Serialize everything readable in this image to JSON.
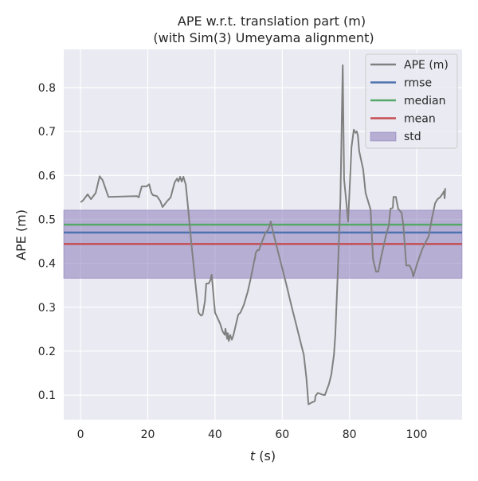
{
  "chart_data": {
    "type": "line",
    "title": [
      "APE w.r.t. translation part (m)",
      "(with Sim(3) Umeyama alignment)"
    ],
    "xlabel_italic": "t",
    "xlabel_rest": " (s)",
    "ylabel": "APE (m)",
    "xlim": [
      -5,
      113.5
    ],
    "ylim": [
      0.044,
      0.887
    ],
    "xticks": [
      0,
      20,
      40,
      60,
      80,
      100
    ],
    "yticks": [
      0.1,
      0.2,
      0.3,
      0.4,
      0.5,
      0.6,
      0.7,
      0.8
    ],
    "grid": true,
    "legend_position": "top-right",
    "legend": [
      "APE (m)",
      "rmse",
      "median",
      "mean",
      "std"
    ],
    "colors": {
      "ape": "#808080",
      "rmse": "#4c72b0",
      "median": "#55a868",
      "mean": "#c44e52",
      "std": "#8172b3"
    },
    "stats": {
      "rmse": 0.47,
      "median": 0.488,
      "mean": 0.444,
      "std_band": [
        0.366,
        0.521
      ]
    },
    "series": [
      {
        "name": "APE (m)",
        "x": [
          0,
          0.7,
          2.1,
          3.1,
          4.5,
          5.7,
          6.6,
          8.3,
          16.8,
          17.3,
          18.2,
          19.7,
          20.4,
          21.1,
          21.6,
          22.7,
          23.7,
          24.4,
          25.8,
          26.8,
          28,
          28.7,
          29.1,
          29.6,
          30.1,
          30.6,
          31.3,
          32,
          33,
          34.4,
          35.1,
          35.8,
          36.3,
          37,
          37.4,
          38.1,
          38.6,
          39,
          39.3,
          40,
          41.5,
          42.2,
          42.9,
          43.1,
          43.6,
          43.8,
          44.1,
          44.5,
          45,
          45.5,
          46.9,
          47.6,
          48.6,
          49.8,
          50.7,
          51.7,
          51.9,
          52.1,
          52.6,
          53.1,
          53.8,
          54.3,
          55,
          55.7,
          56.2,
          56.6,
          57.1,
          57.8,
          59,
          60.2,
          61.4,
          62.8,
          64.2,
          65.6,
          66.4,
          67.2,
          67.8,
          68.7,
          69.7,
          69.9,
          70.6,
          72,
          72.7,
          73.9,
          74.6,
          75.4,
          75.8,
          76.5,
          77.3,
          78,
          78.4,
          79.6,
          80.6,
          81.3,
          81.8,
          82.2,
          82.5,
          82.9,
          84.1,
          84.8,
          85.5,
          86.3,
          87,
          87.9,
          88.6,
          89.3,
          90.8,
          91.7,
          92.2,
          92.9,
          93.1,
          93.8,
          94.5,
          95.5,
          96,
          96.9,
          97.9,
          98.6,
          99,
          100.2,
          101.7,
          103.6,
          104.5,
          105.5,
          106.2,
          106.9,
          107.8,
          108.1,
          108.3,
          108.5
        ],
        "y": [
          0.539,
          0.543,
          0.557,
          0.546,
          0.56,
          0.598,
          0.589,
          0.551,
          0.553,
          0.55,
          0.575,
          0.575,
          0.58,
          0.56,
          0.555,
          0.553,
          0.542,
          0.528,
          0.542,
          0.55,
          0.584,
          0.593,
          0.586,
          0.597,
          0.586,
          0.597,
          0.579,
          0.526,
          0.444,
          0.339,
          0.288,
          0.281,
          0.283,
          0.313,
          0.354,
          0.354,
          0.361,
          0.374,
          0.35,
          0.288,
          0.263,
          0.246,
          0.237,
          0.251,
          0.228,
          0.241,
          0.223,
          0.237,
          0.226,
          0.237,
          0.283,
          0.288,
          0.306,
          0.337,
          0.368,
          0.406,
          0.412,
          0.423,
          0.43,
          0.43,
          0.446,
          0.455,
          0.47,
          0.475,
          0.483,
          0.495,
          0.477,
          0.455,
          0.419,
          0.383,
          0.346,
          0.301,
          0.259,
          0.216,
          0.192,
          0.139,
          0.079,
          0.083,
          0.086,
          0.098,
          0.105,
          0.101,
          0.1,
          0.125,
          0.147,
          0.192,
          0.237,
          0.374,
          0.546,
          0.851,
          0.592,
          0.495,
          0.664,
          0.704,
          0.697,
          0.7,
          0.691,
          0.655,
          0.613,
          0.56,
          0.542,
          0.522,
          0.41,
          0.381,
          0.381,
          0.41,
          0.461,
          0.486,
          0.524,
          0.526,
          0.551,
          0.551,
          0.524,
          0.515,
          0.488,
          0.395,
          0.395,
          0.383,
          0.37,
          0.401,
          0.433,
          0.462,
          0.501,
          0.537,
          0.546,
          0.55,
          0.559,
          0.564,
          0.548,
          0.571
        ]
      }
    ]
  }
}
